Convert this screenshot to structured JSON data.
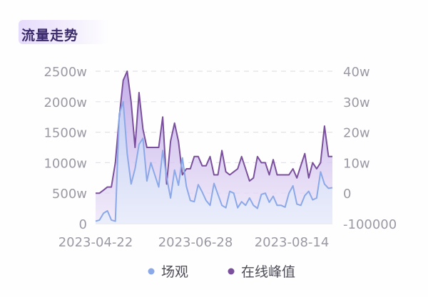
{
  "header": {
    "title": "流量走势"
  },
  "colors": {
    "series1": "#8ba8e8",
    "series2": "#7a4f9c"
  },
  "chart_data": {
    "type": "area",
    "x_ticks": [
      "2023-04-22",
      "2023-06-28",
      "2023-08-14"
    ],
    "y_left": {
      "ticks": [
        "0",
        "500w",
        "1000w",
        "1500w",
        "2000w",
        "2500w"
      ],
      "values": [
        0,
        500,
        1000,
        1500,
        2000,
        2500
      ],
      "range": [
        0,
        2500
      ]
    },
    "y_right": {
      "ticks": [
        "-100000",
        "0",
        "10w",
        "20w",
        "30w",
        "40w"
      ],
      "values": [
        -100000,
        0,
        100000,
        200000,
        300000,
        400000
      ],
      "range": [
        -100000,
        400000
      ]
    },
    "series": [
      {
        "name": "场观",
        "axis": "left",
        "color": "#8ba8e8",
        "values": [
          40,
          60,
          170,
          210,
          60,
          40,
          1800,
          2000,
          1150,
          650,
          900,
          1300,
          1400,
          700,
          1000,
          800,
          600,
          1200,
          760,
          420,
          880,
          630,
          1080,
          610,
          380,
          360,
          640,
          520,
          380,
          300,
          660,
          480,
          300,
          260,
          530,
          500,
          260,
          360,
          300,
          420,
          300,
          250,
          480,
          500,
          350,
          450,
          300,
          300,
          270,
          500,
          620,
          320,
          300,
          460,
          530,
          390,
          420,
          850,
          650,
          580,
          590
        ]
      },
      {
        "name": "在线峰值",
        "axis": "right",
        "color": "#7a4f9c",
        "values": [
          0,
          0,
          10000,
          20000,
          20000,
          100000,
          250000,
          370000,
          400000,
          300000,
          150000,
          330000,
          210000,
          150000,
          150000,
          150000,
          150000,
          250000,
          30000,
          170000,
          230000,
          170000,
          60000,
          80000,
          80000,
          120000,
          120000,
          90000,
          90000,
          120000,
          60000,
          60000,
          140000,
          70000,
          60000,
          70000,
          80000,
          120000,
          80000,
          40000,
          50000,
          120000,
          100000,
          100000,
          60000,
          110000,
          60000,
          60000,
          60000,
          60000,
          80000,
          50000,
          90000,
          130000,
          50000,
          100000,
          80000,
          100000,
          220000,
          120000,
          120000
        ]
      }
    ],
    "legend": {
      "placement": "bottom",
      "items": [
        "场观",
        "在线峰值"
      ]
    },
    "grid": true
  }
}
